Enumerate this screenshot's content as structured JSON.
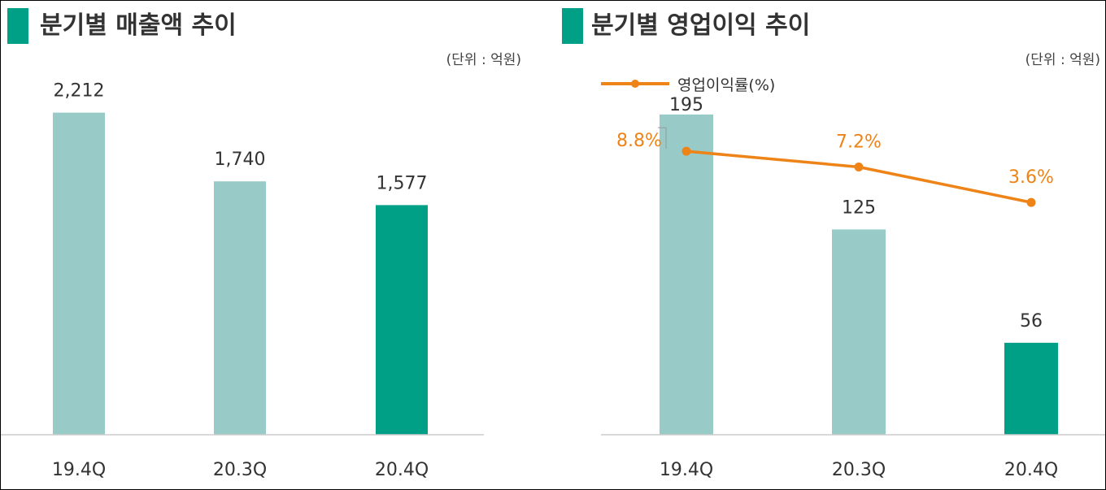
{
  "colors": {
    "accent": "#00a087",
    "bar_light": "#98cac8",
    "bar_highlight": "#00a087",
    "line": "#ee8317",
    "text": "#333333",
    "axis": "#cccccc"
  },
  "chart_data": [
    {
      "type": "bar",
      "title": "분기별 매출액 추이",
      "unit": "(단위 : 억원)",
      "categories": [
        "19.4Q",
        "20.3Q",
        "20.4Q"
      ],
      "series": [
        {
          "values": [
            2212,
            1740,
            1577
          ],
          "labels": [
            "2,212",
            "1,740",
            "1,577"
          ]
        }
      ],
      "highlight_index": 2,
      "ylim": [
        0,
        2500
      ],
      "grid": false
    },
    {
      "type": "bar",
      "title": "분기별 영업이익 추이",
      "unit": "(단위 : 억원)",
      "categories": [
        "19.4Q",
        "20.3Q",
        "20.4Q"
      ],
      "series": [
        {
          "values": [
            195,
            125,
            56
          ],
          "labels": [
            "195",
            "125",
            "56"
          ]
        },
        {
          "name": "영업이익률(%)",
          "type": "line",
          "values": [
            8.8,
            7.2,
            3.6
          ],
          "labels": [
            "8.8%",
            "7.2%",
            "3.6%"
          ]
        }
      ],
      "highlight_index": 2,
      "ylim": [
        0,
        190
      ],
      "line_ylim": [
        -20,
        15
      ],
      "legend_position": "top-left",
      "grid": false
    }
  ]
}
